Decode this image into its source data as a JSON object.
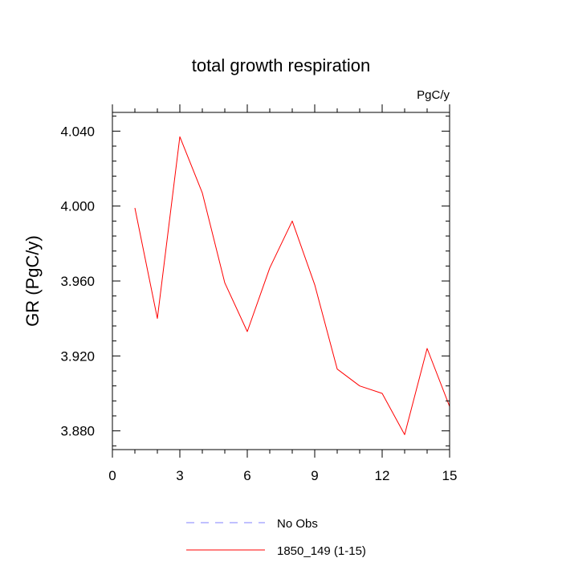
{
  "chart_data": {
    "type": "line",
    "title": "total growth respiration",
    "units": "PgC/y",
    "ylabel": "GR  (PgC/y)",
    "xlabel": "",
    "xlim": [
      0,
      15
    ],
    "ylim": [
      3.87,
      4.05
    ],
    "xticks": [
      0,
      3,
      6,
      9,
      12,
      15
    ],
    "xtick_labels": [
      "0",
      "3",
      "6",
      "9",
      "12",
      "15"
    ],
    "xminor_step": 1,
    "yticks": [
      3.88,
      3.92,
      3.96,
      4.0,
      4.04
    ],
    "ytick_labels": [
      "3.880",
      "3.920",
      "3.960",
      "4.000",
      "4.040"
    ],
    "yminor_step": 0.008,
    "grid": false,
    "legend_position": "bottom",
    "series": [
      {
        "name": "No Obs",
        "color": "#8080ff",
        "dash": "dashed",
        "x": [],
        "values": []
      },
      {
        "name": "1850_149 (1-15)",
        "color": "#ff0000",
        "dash": "solid",
        "x": [
          1,
          2,
          3,
          4,
          5,
          6,
          7,
          8,
          9,
          10,
          11,
          12,
          13,
          14,
          15
        ],
        "values": [
          3.999,
          3.94,
          4.037,
          4.007,
          3.959,
          3.933,
          3.967,
          3.992,
          3.958,
          3.913,
          3.904,
          3.9,
          3.878,
          3.924,
          3.893
        ]
      }
    ]
  }
}
